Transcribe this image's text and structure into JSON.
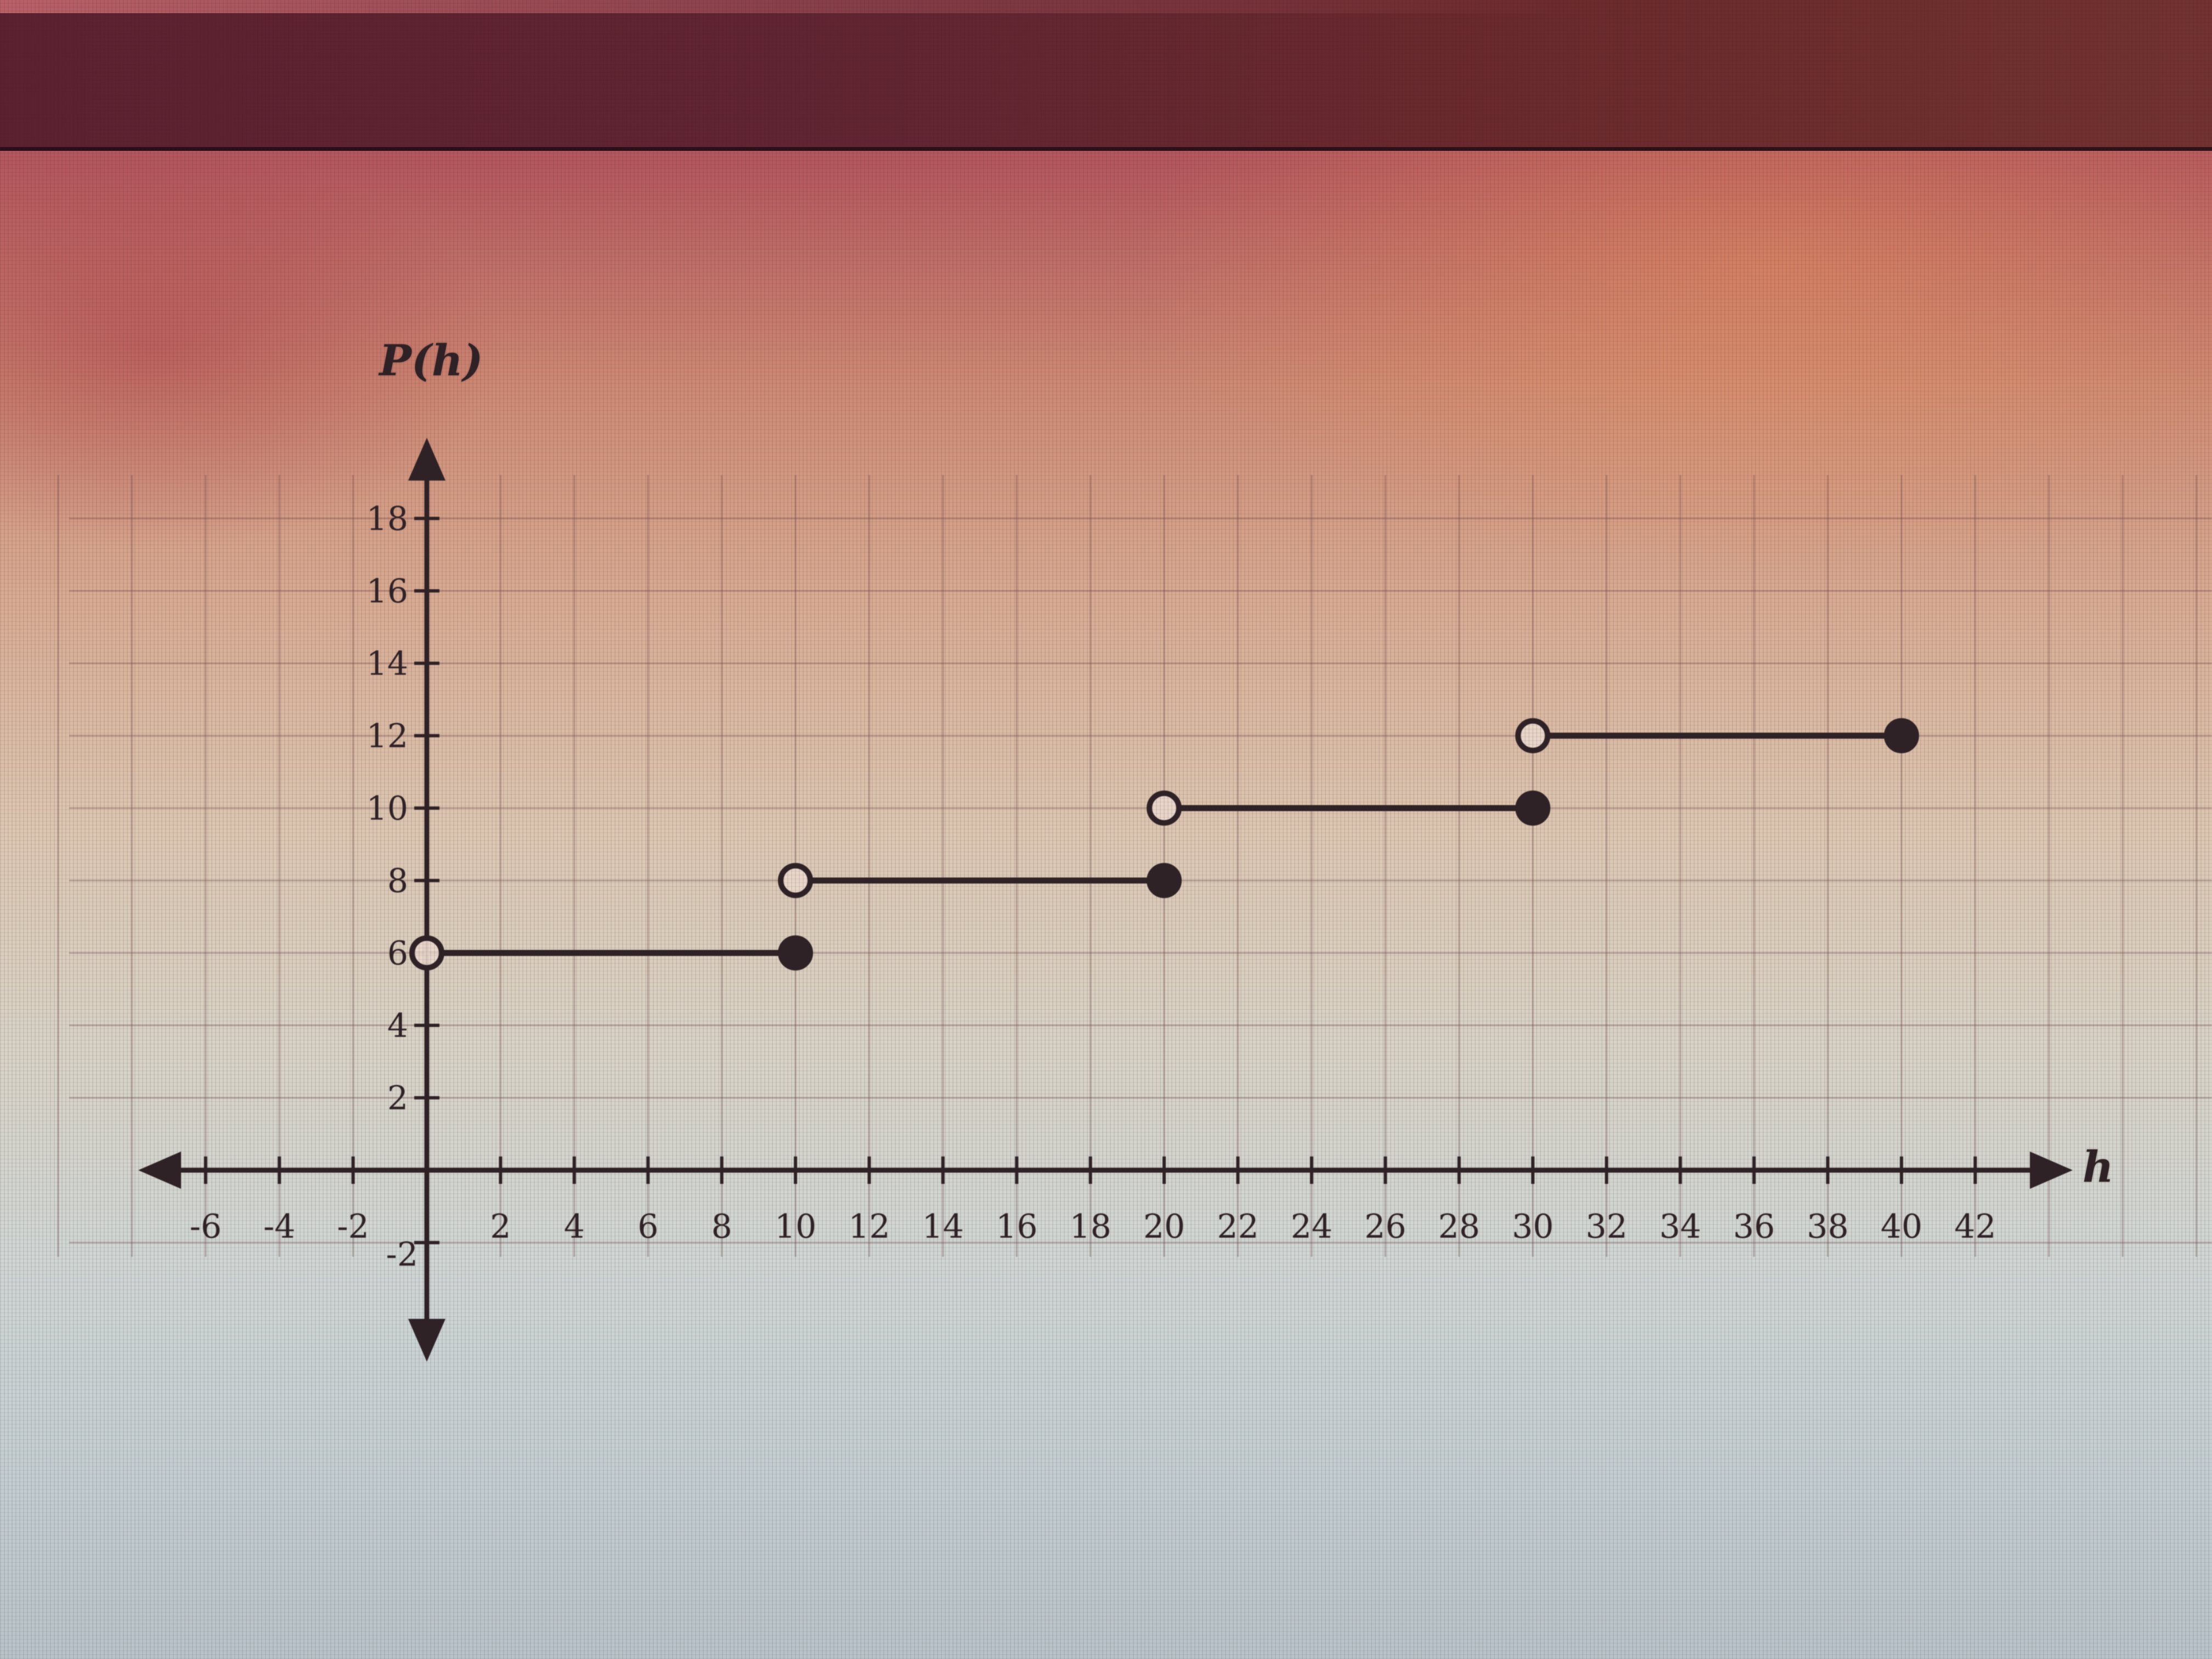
{
  "chart_data": {
    "type": "step",
    "title": "",
    "xlabel": "h",
    "ylabel": "P(h)",
    "xlim": [
      -7.2,
      44.5
    ],
    "ylim": [
      -5,
      20.5
    ],
    "grid": {
      "show": true,
      "spacing": 2,
      "x_range": [
        -10,
        48
      ],
      "y_range": [
        -2,
        18
      ]
    },
    "x_tick_values": [
      -6,
      -4,
      -2,
      2,
      4,
      6,
      8,
      10,
      12,
      14,
      16,
      18,
      20,
      22,
      24,
      26,
      28,
      30,
      32,
      34,
      36,
      38,
      40,
      42
    ],
    "x_tick_labels": [
      "-6",
      "-4",
      "-2",
      "2",
      "4",
      "6",
      "8",
      "10",
      "12",
      "14",
      "16",
      "18",
      "20",
      "22",
      "24",
      "26",
      "28",
      "30",
      "32",
      "34",
      "36",
      "38",
      "40",
      "42"
    ],
    "y_tick_values": [
      18,
      16,
      14,
      12,
      10,
      8,
      6,
      4,
      2,
      -2
    ],
    "y_tick_labels": [
      "18",
      "16",
      "14",
      "12",
      "10",
      "8",
      "6",
      "4",
      "2",
      "-2"
    ],
    "series": [
      {
        "name": "P(h)",
        "segments": [
          {
            "x_start": 0,
            "x_end": 10,
            "y": 6,
            "left_endpoint": "open",
            "right_endpoint": "closed"
          },
          {
            "x_start": 10,
            "x_end": 20,
            "y": 8,
            "left_endpoint": "open",
            "right_endpoint": "closed"
          },
          {
            "x_start": 20,
            "x_end": 30,
            "y": 10,
            "left_endpoint": "open",
            "right_endpoint": "closed"
          },
          {
            "x_start": 30,
            "x_end": 40,
            "y": 12,
            "left_endpoint": "open",
            "right_endpoint": "closed"
          }
        ]
      }
    ],
    "legend": {
      "show": false
    }
  },
  "colors": {
    "ink": "#2e2227",
    "grid_line": "rgba(112,72,78,0.35)",
    "open_point_fill": "rgba(233,215,203,0.95)",
    "band_dark": "#5c2130",
    "background_top": "#b4585e",
    "background_bottom": "#b8c3c9"
  }
}
